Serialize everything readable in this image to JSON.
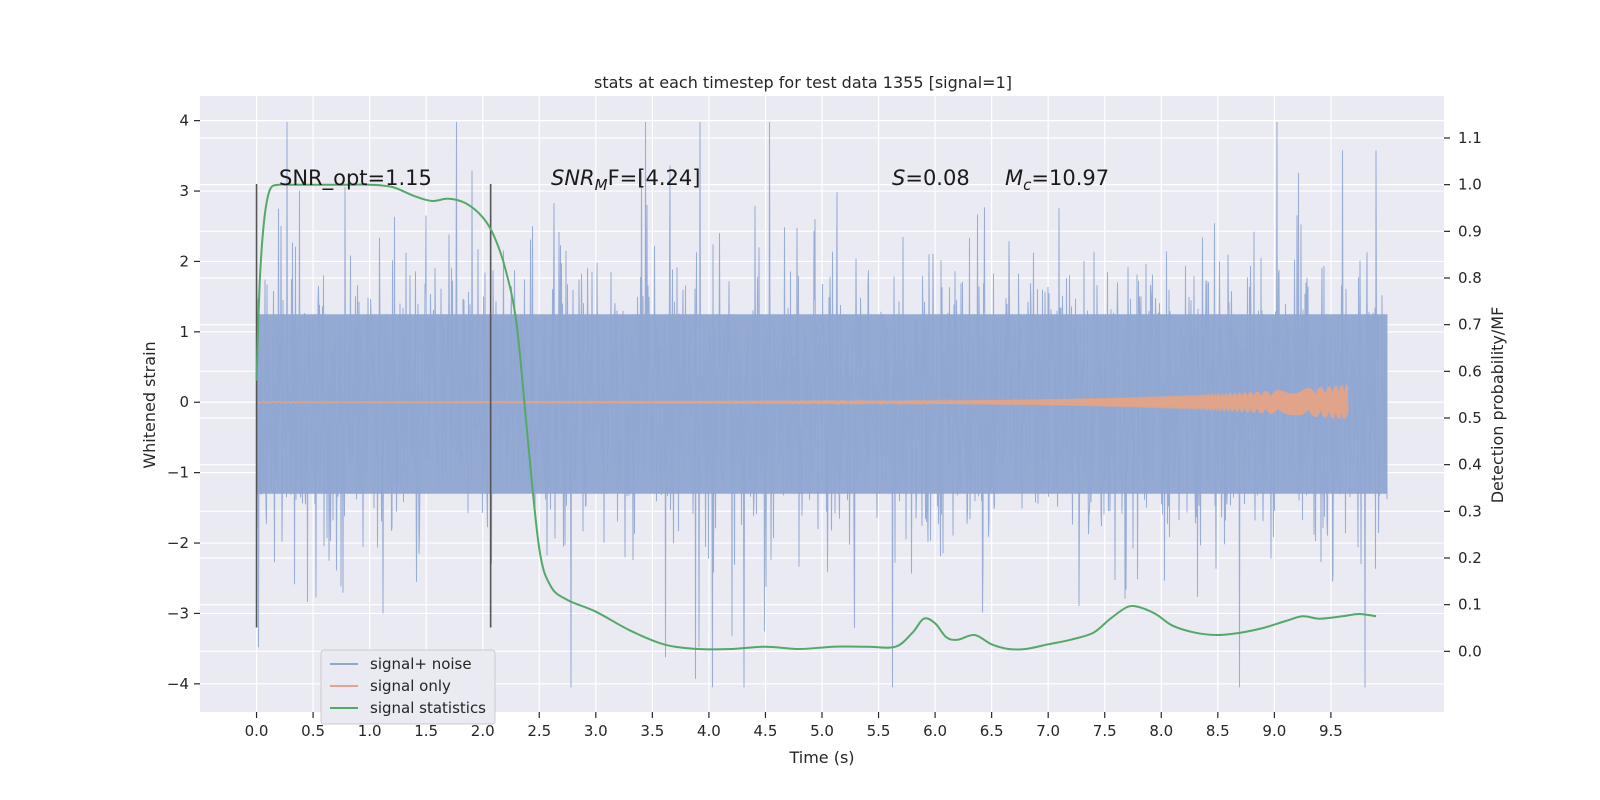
{
  "chart_data": {
    "type": "line",
    "title": "stats at each timestep for test data 1355 [signal=1]",
    "xlabel": "Time (s)",
    "ylabel": "Whitened strain",
    "y2label": "Detection probability/MF",
    "xlim": [
      -0.5,
      10.5
    ],
    "ylim": [
      -4.4,
      4.35
    ],
    "y2lim": [
      -0.13,
      1.19
    ],
    "x_ticks": [
      0.0,
      0.5,
      1.0,
      1.5,
      2.0,
      2.5,
      3.0,
      3.5,
      4.0,
      4.5,
      5.0,
      5.5,
      6.0,
      6.5,
      7.0,
      7.5,
      8.0,
      8.5,
      9.0,
      9.5
    ],
    "x_tick_labels": [
      "0.0",
      "0.5",
      "1.0",
      "1.5",
      "2.0",
      "2.5",
      "3.0",
      "3.5",
      "4.0",
      "4.5",
      "5.0",
      "5.5",
      "6.0",
      "6.5",
      "7.0",
      "7.5",
      "8.0",
      "8.5",
      "9.0",
      "9.5"
    ],
    "y_ticks": [
      -4,
      -3,
      -2,
      -1,
      0,
      1,
      2,
      3,
      4
    ],
    "y_tick_labels": [
      "−4",
      "−3",
      "−2",
      "−1",
      "0",
      "1",
      "2",
      "3",
      "4"
    ],
    "y2_ticks": [
      0.0,
      0.1,
      0.2,
      0.3,
      0.4,
      0.5,
      0.6,
      0.7,
      0.8,
      0.9,
      1.0,
      1.1
    ],
    "y2_tick_labels": [
      "0.0",
      "0.1",
      "0.2",
      "0.3",
      "0.4",
      "0.5",
      "0.6",
      "0.7",
      "0.8",
      "0.9",
      "1.0",
      "1.1"
    ],
    "grid": true,
    "legend_position": "lower-left",
    "series": [
      {
        "name": "signal+ noise",
        "axis": "left",
        "color": "#8fa6d1",
        "x_range": [
          0.0,
          10.0
        ],
        "rough_amplitude": 1.9,
        "max": 3.98,
        "min": -4.05
      },
      {
        "name": "signal only",
        "axis": "left",
        "color": "#e0a48a",
        "x_range": [
          0.0,
          9.65
        ],
        "amplitude_start": 0.01,
        "amplitude_end": 0.25
      },
      {
        "name": "signal statistics",
        "axis": "right",
        "color": "#55a868",
        "x": [
          0.0,
          0.03,
          0.07,
          0.12,
          0.2,
          0.3,
          0.5,
          0.8,
          1.0,
          1.2,
          1.4,
          1.55,
          1.7,
          1.85,
          2.0,
          2.1,
          2.2,
          2.3,
          2.4,
          2.5,
          2.6,
          2.75,
          3.0,
          3.3,
          3.6,
          3.9,
          4.2,
          4.5,
          4.8,
          5.1,
          5.4,
          5.65,
          5.8,
          5.9,
          6.0,
          6.1,
          6.2,
          6.35,
          6.5,
          6.65,
          6.8,
          7.0,
          7.2,
          7.4,
          7.55,
          7.7,
          7.8,
          7.95,
          8.1,
          8.3,
          8.5,
          8.7,
          8.9,
          9.1,
          9.25,
          9.4,
          9.6,
          9.75,
          9.9
        ],
        "y": [
          0.58,
          0.8,
          0.93,
          0.99,
          1.0,
          1.0,
          1.0,
          1.0,
          1.0,
          0.995,
          0.975,
          0.965,
          0.97,
          0.96,
          0.93,
          0.89,
          0.82,
          0.7,
          0.45,
          0.22,
          0.14,
          0.11,
          0.085,
          0.045,
          0.015,
          0.005,
          0.005,
          0.01,
          0.005,
          0.01,
          0.01,
          0.01,
          0.04,
          0.07,
          0.06,
          0.03,
          0.025,
          0.035,
          0.015,
          0.005,
          0.005,
          0.015,
          0.025,
          0.04,
          0.07,
          0.095,
          0.095,
          0.08,
          0.055,
          0.04,
          0.035,
          0.04,
          0.05,
          0.065,
          0.075,
          0.07,
          0.075,
          0.08,
          0.075
        ]
      }
    ],
    "vertical_lines": [
      {
        "x": 0.0,
        "y_range": [
          -3.2,
          3.1
        ],
        "color": "#555555"
      },
      {
        "x": 2.07,
        "y_range": [
          -3.2,
          3.1
        ],
        "color": "#555555"
      }
    ],
    "annotations": {
      "snr_opt": "SNR_opt=1.15",
      "snr_mf_base": "SNR",
      "snr_mf_sub": "M",
      "snr_mf_rest": "F=[4.24]",
      "s_label": "S",
      "s_value": "=0.08",
      "mc_base": "M",
      "mc_sub": "c",
      "mc_value": "=10.97"
    }
  }
}
